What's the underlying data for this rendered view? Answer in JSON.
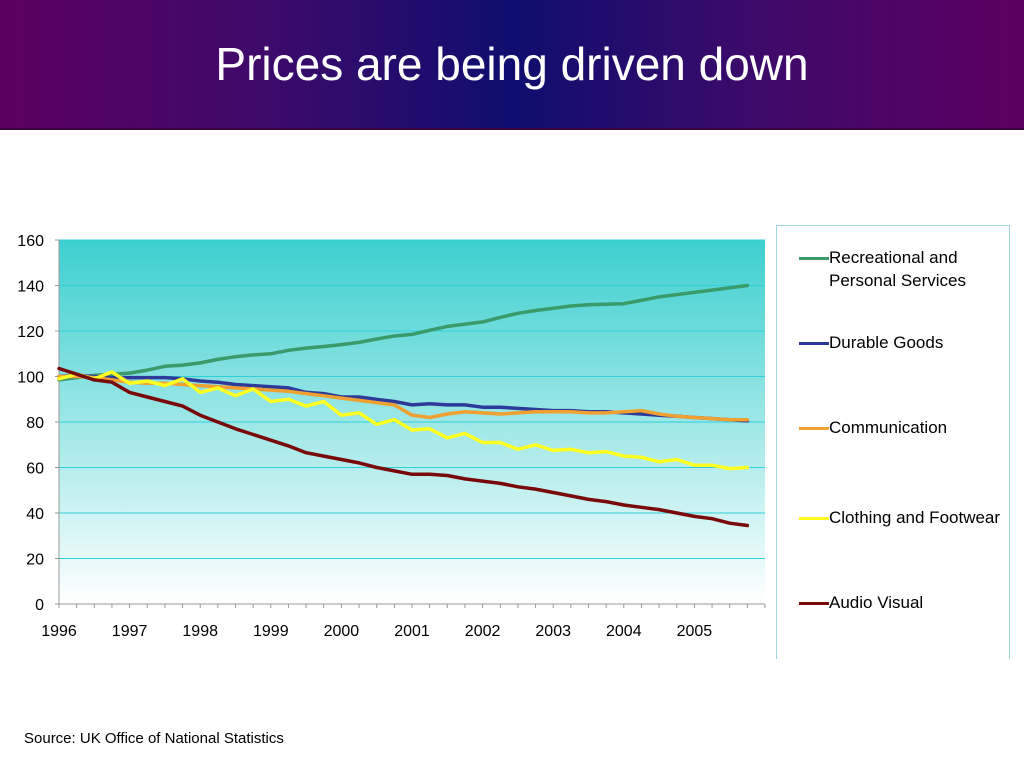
{
  "slide": {
    "title": "Prices are being driven down",
    "source": "Source: UK Office of National Statistics",
    "colors": {
      "banner_center": "#0e0e6e",
      "banner_edge": "#5c0060"
    }
  },
  "chart_data": {
    "type": "line",
    "title": "",
    "xlabel": "",
    "ylabel": "",
    "x_range": [
      1996,
      2006
    ],
    "x_ticks": [
      "1996",
      "1997",
      "1998",
      "1999",
      "2000",
      "2001",
      "2002",
      "2003",
      "2004",
      "2005"
    ],
    "ylim": [
      0,
      160
    ],
    "y_ticks": [
      0,
      20,
      40,
      60,
      80,
      100,
      120,
      140,
      160
    ],
    "grid": true,
    "legend_position": "right",
    "x": [
      1996,
      1996.25,
      1996.5,
      1996.75,
      1997,
      1997.25,
      1997.5,
      1997.75,
      1998,
      1998.25,
      1998.5,
      1998.75,
      1999,
      1999.25,
      1999.5,
      1999.75,
      2000,
      2000.25,
      2000.5,
      2000.75,
      2001,
      2001.25,
      2001.5,
      2001.75,
      2002,
      2002.25,
      2002.5,
      2002.75,
      2003,
      2003.25,
      2003.5,
      2003.75,
      2004,
      2004.25,
      2004.5,
      2004.75,
      2005,
      2005.25,
      2005.5,
      2005.75
    ],
    "series": [
      {
        "name": "Recreational and Personal Services",
        "color": "#3a9a6a",
        "values": [
          98.5,
          99.5,
          100.5,
          101,
          101.5,
          102.8,
          104.5,
          105,
          106,
          107.5,
          108.7,
          109.5,
          110,
          111.5,
          112.5,
          113.2,
          114,
          115,
          116.5,
          117.8,
          118.5,
          120.3,
          122,
          123,
          124,
          126,
          127.8,
          129,
          130,
          131,
          131.5,
          131.8,
          132,
          133.5,
          135,
          136,
          137,
          138,
          139,
          140
        ]
      },
      {
        "name": "Durable Goods",
        "color": "#2e3a9a",
        "values": [
          100,
          100.5,
          100,
          99.5,
          99.5,
          99.5,
          99.5,
          99,
          98,
          97.5,
          96.5,
          96,
          95.5,
          95,
          93,
          92.5,
          91,
          91,
          90,
          89,
          87.5,
          88,
          87.5,
          87.5,
          86.5,
          86.5,
          86,
          85.5,
          85,
          85,
          84.5,
          84.5,
          84,
          83.5,
          83,
          82.5,
          82,
          81.5,
          81,
          80.5
        ]
      },
      {
        "name": "Communication",
        "color": "#f0a030",
        "values": [
          100,
          100,
          99.5,
          98.5,
          97.5,
          97,
          97,
          96.5,
          96,
          95.5,
          95,
          94.5,
          94,
          93.5,
          92.5,
          91.5,
          90.5,
          89.5,
          88.5,
          87.5,
          83,
          82,
          83.5,
          84.5,
          84,
          83.5,
          84,
          84.5,
          84.5,
          84.5,
          84,
          84,
          84.5,
          85,
          83.5,
          82.5,
          82,
          81.5,
          81,
          81
        ]
      },
      {
        "name": "Clothing and Footwear",
        "color": "#ffff22",
        "values": [
          99,
          101,
          99,
          102,
          97,
          98,
          96,
          99,
          93,
          95,
          91.5,
          94.5,
          89,
          90,
          87,
          89,
          83,
          84,
          79,
          81,
          76.5,
          77,
          73,
          75,
          71,
          71,
          68,
          70,
          67.5,
          68,
          66.5,
          67,
          65,
          64.5,
          62.5,
          63.5,
          61,
          61,
          59.5,
          60
        ]
      },
      {
        "name": "Audio Visual",
        "color": "#7a0a0a",
        "values": [
          103.5,
          101,
          98.5,
          97.5,
          93,
          91,
          89,
          87,
          83,
          80,
          77,
          74.5,
          72,
          69.5,
          66.5,
          65,
          63.5,
          62,
          60,
          58.5,
          57,
          57,
          56.5,
          55,
          54,
          53,
          51.5,
          50.5,
          49,
          47.5,
          46,
          45,
          43.5,
          42.5,
          41.5,
          40,
          38.5,
          37.5,
          35.5,
          34.5
        ]
      }
    ]
  }
}
